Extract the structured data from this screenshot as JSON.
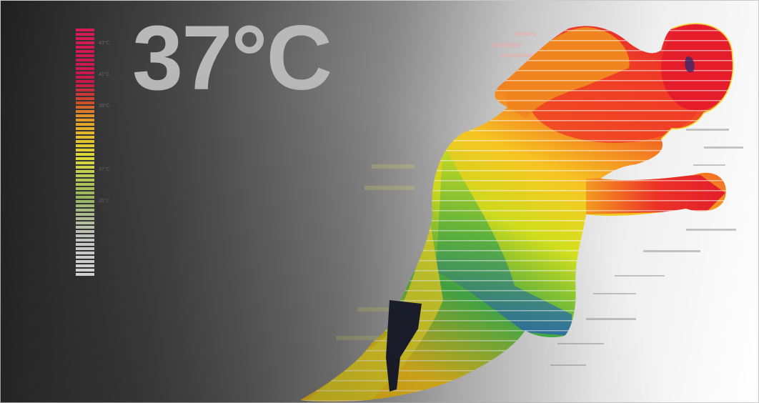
{
  "headline": {
    "temperature": "37°C"
  },
  "scale": {
    "ticks": [
      "43°C",
      "41°C",
      "39°C",
      "37°C",
      "35°C"
    ]
  },
  "colors": {
    "hot": "#e11c2a",
    "warm": "#f59a1f",
    "mid": "#f2e624",
    "cool": "#3fb64a",
    "cold": "#1f57b8",
    "numeral": "#b9b9b9"
  }
}
